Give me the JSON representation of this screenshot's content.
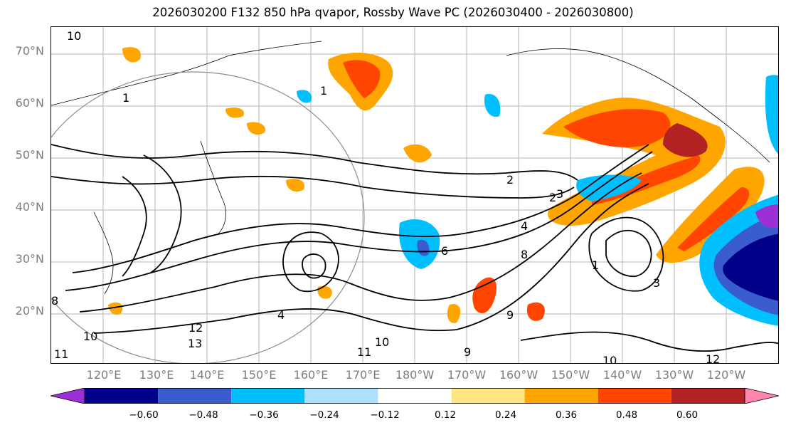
{
  "title": "2026030200 F132 850 hPa qvapor, Rossby Wave PC (2026030400 - 2026030800)",
  "map": {
    "projection": "PlateCarree",
    "lon_range": "110°E–110°W",
    "lat_range": "10°N–75°N",
    "lat_labels": [
      "70°N",
      "60°N",
      "50°N",
      "40°N",
      "30°N",
      "20°N"
    ],
    "lon_labels": [
      "120°E",
      "130°E",
      "140°E",
      "150°E",
      "160°E",
      "170°E",
      "180°W",
      "170°W",
      "160°W",
      "150°W",
      "140°W",
      "130°W",
      "120°W"
    ],
    "gridlines": true,
    "contour_labels": [
      "10",
      "1",
      "1",
      "1",
      "2",
      "2",
      "3",
      "3",
      "4",
      "4",
      "6",
      "8",
      "8",
      "9",
      "10",
      "10",
      "11",
      "11",
      "12",
      "12",
      "13",
      "9",
      "10"
    ],
    "colors": {
      "contour": "#000000",
      "circle": "#8c8c8c",
      "grid": "#b4b4b4"
    }
  },
  "colorbar": {
    "tick_labels": [
      "−0.60",
      "−0.48",
      "−0.36",
      "−0.24",
      "−0.12",
      "0.12",
      "0.24",
      "0.36",
      "0.48",
      "0.60"
    ],
    "levels": [
      -0.6,
      -0.48,
      -0.36,
      -0.24,
      -0.12,
      0.12,
      0.24,
      0.36,
      0.48,
      0.6
    ],
    "colors": [
      "#9b30d8",
      "#00008b",
      "#3a5ccc",
      "#00bfff",
      "#b0e0ff",
      "#ffffff",
      "#ffe680",
      "#ffa500",
      "#ff4500",
      "#b22222",
      "#ff85aa"
    ],
    "extend": "both"
  }
}
